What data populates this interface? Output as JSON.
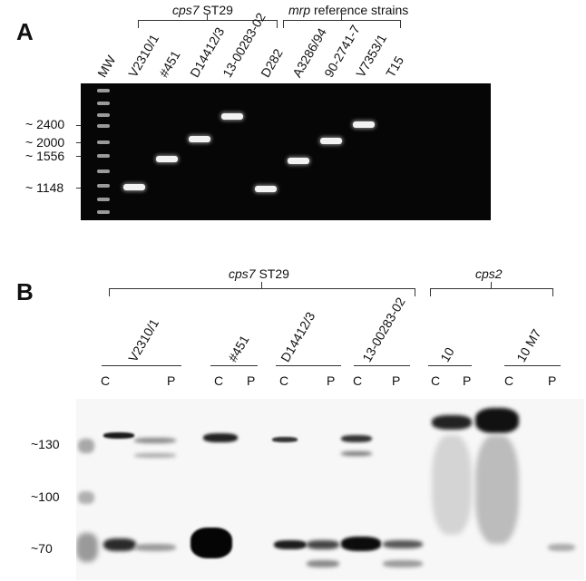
{
  "panel_a": {
    "letter": "A",
    "group1_label_italic": "cps7",
    "group1_label_rest": " ST29",
    "group2_label_italic": "mrp",
    "group2_label_rest": " reference strains",
    "lanes": [
      "MW",
      "V2310/1",
      "#451",
      "D14412/3",
      "13-00283-02",
      "D282",
      "A3286/94",
      "90-2741-7",
      "V7353/1",
      "T15"
    ],
    "size_markers": [
      "~ 2400",
      "~ 2000",
      "~ 1556",
      "~ 1148"
    ]
  },
  "panel_b": {
    "letter": "B",
    "group1_label_italic": "cps7",
    "group1_label_rest": " ST29",
    "group2_label_italic": "cps2",
    "strains": [
      "V2310/1",
      "#451",
      "D14412/3",
      "13-00283-02",
      "10",
      "10 M7"
    ],
    "fraction_labels": [
      "C",
      "P",
      "C",
      "P",
      "C",
      "P",
      "C",
      "P",
      "C",
      "P",
      "C",
      "P"
    ],
    "kda_markers": [
      "~130",
      "~100",
      "~70"
    ]
  }
}
